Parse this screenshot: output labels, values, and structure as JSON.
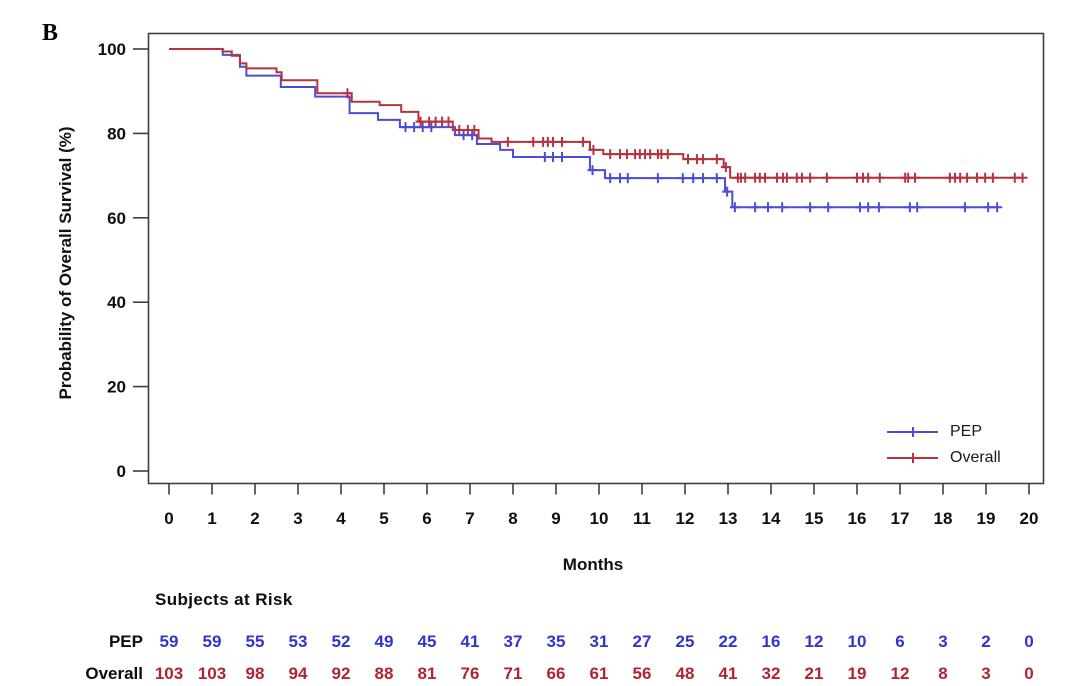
{
  "figure": {
    "panel_label": "B"
  },
  "chart_data": {
    "type": "line",
    "subtype": "kaplan-meier-step",
    "title": "",
    "xlabel": "Months",
    "ylabel": "Probability of Overall Survival (%)",
    "xlim": [
      0,
      20
    ],
    "ylim": [
      0,
      100
    ],
    "x_ticks": [
      0,
      1,
      2,
      3,
      4,
      5,
      6,
      7,
      8,
      9,
      10,
      11,
      12,
      13,
      14,
      15,
      16,
      17,
      18,
      19,
      20
    ],
    "y_ticks": [
      0,
      20,
      40,
      60,
      80,
      100
    ],
    "grid": "off",
    "legend_position": "inside-bottom-right",
    "axis_color": "#3e3e3e",
    "tick_label_color": "#0f0f0f",
    "series": [
      {
        "name": "PEP",
        "color": "#4c4cdc",
        "steps": [
          [
            0,
            100
          ],
          [
            1.25,
            98.6
          ],
          [
            1.65,
            95.8
          ],
          [
            1.8,
            93.7
          ],
          [
            2.6,
            91.0
          ],
          [
            3.4,
            88.7
          ],
          [
            4.2,
            84.8
          ],
          [
            4.86,
            83.2
          ],
          [
            5.37,
            81.5
          ],
          [
            6.65,
            79.6
          ],
          [
            7.16,
            77.5
          ],
          [
            7.7,
            76.1
          ],
          [
            8.0,
            74.4
          ],
          [
            9.79,
            71.3
          ],
          [
            10.14,
            69.4
          ],
          [
            12.93,
            66.2
          ],
          [
            13.1,
            62.5
          ]
        ],
        "end_time": 19.3,
        "censor_times": [
          5.5,
          5.7,
          5.9,
          6.1,
          6.85,
          7.05,
          8.74,
          8.93,
          9.14,
          9.85,
          10.26,
          10.49,
          10.67,
          11.37,
          11.95,
          12.19,
          12.42,
          12.74,
          12.98,
          13.16,
          13.63,
          13.93,
          14.26,
          14.91,
          15.33,
          16.07,
          16.26,
          16.51,
          17.23,
          17.4,
          18.51,
          19.05,
          19.26
        ]
      },
      {
        "name": "Overall",
        "color": "#b8323e",
        "steps": [
          [
            0,
            100
          ],
          [
            1.25,
            99.4
          ],
          [
            1.46,
            98.4
          ],
          [
            1.65,
            96.6
          ],
          [
            1.8,
            95.4
          ],
          [
            2.5,
            94.5
          ],
          [
            2.62,
            92.6
          ],
          [
            3.45,
            89.5
          ],
          [
            4.25,
            87.5
          ],
          [
            4.9,
            86.7
          ],
          [
            5.4,
            85.1
          ],
          [
            5.8,
            82.8
          ],
          [
            6.6,
            80.8
          ],
          [
            7.2,
            78.8
          ],
          [
            7.5,
            78.0
          ],
          [
            9.79,
            76.1
          ],
          [
            10.1,
            75.1
          ],
          [
            11.96,
            73.9
          ],
          [
            12.9,
            72.0
          ],
          [
            13.05,
            69.5
          ]
        ],
        "end_time": 19.85,
        "censor_times": [
          4.15,
          5.85,
          6.05,
          6.2,
          6.35,
          6.5,
          6.75,
          6.95,
          7.1,
          7.88,
          8.47,
          8.7,
          8.81,
          8.93,
          9.14,
          9.63,
          9.87,
          10.26,
          10.49,
          10.65,
          10.84,
          10.95,
          11.07,
          11.19,
          11.37,
          11.45,
          11.6,
          12.07,
          12.28,
          12.42,
          12.74,
          12.95,
          13.23,
          13.3,
          13.4,
          13.63,
          13.74,
          13.86,
          14.14,
          14.28,
          14.37,
          14.6,
          14.72,
          14.91,
          15.3,
          16.0,
          16.14,
          16.26,
          16.53,
          17.12,
          17.19,
          17.35,
          18.16,
          18.28,
          18.4,
          18.56,
          18.79,
          18.98,
          19.16,
          19.67,
          19.85
        ]
      }
    ]
  },
  "risk_table": {
    "title": "Subjects at Risk",
    "times": [
      0,
      1,
      2,
      3,
      4,
      5,
      6,
      7,
      8,
      9,
      10,
      11,
      12,
      13,
      14,
      15,
      16,
      17,
      18,
      19,
      20
    ],
    "rows": [
      {
        "label": "PEP",
        "value_color": "#3434cf",
        "values": [
          59,
          59,
          55,
          53,
          52,
          49,
          45,
          41,
          37,
          35,
          31,
          27,
          25,
          22,
          16,
          12,
          10,
          6,
          3,
          2,
          0
        ]
      },
      {
        "label": "Overall",
        "value_color": "#b2242f",
        "values": [
          103,
          103,
          98,
          94,
          92,
          88,
          81,
          76,
          71,
          66,
          61,
          56,
          48,
          41,
          32,
          21,
          19,
          12,
          8,
          3,
          0
        ]
      }
    ]
  }
}
